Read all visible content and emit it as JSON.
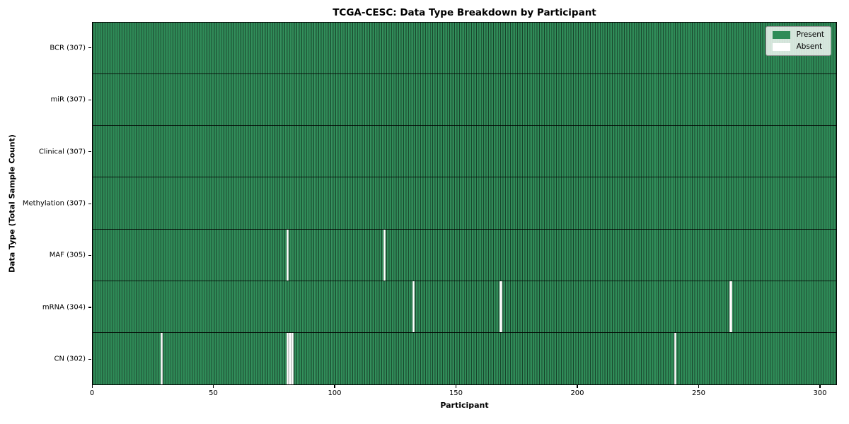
{
  "chart_data": {
    "type": "heatmap",
    "title": "TCGA-CESC: Data Type Breakdown by Participant",
    "xlabel": "Participant",
    "ylabel": "Data Type (Total Sample Count)",
    "n_participants": 307,
    "xlim": [
      0,
      307
    ],
    "x_ticks": [
      0,
      50,
      100,
      150,
      200,
      250,
      300
    ],
    "grid": false,
    "legend_position": "upper right",
    "colors": {
      "present": "#2e8b57",
      "absent": "#ffffff",
      "row_separator": "#000000",
      "plot_border": "#000000"
    },
    "legend": [
      {
        "label": "Present",
        "color": "#2e8b57"
      },
      {
        "label": "Absent",
        "color": "#ffffff"
      }
    ],
    "rows": [
      {
        "label": "BCR (307)",
        "present_count": 307,
        "absent_participants": []
      },
      {
        "label": "miR (307)",
        "present_count": 307,
        "absent_participants": []
      },
      {
        "label": "Clinical (307)",
        "present_count": 307,
        "absent_participants": []
      },
      {
        "label": "Methylation (307)",
        "present_count": 307,
        "absent_participants": []
      },
      {
        "label": "MAF (305)",
        "present_count": 305,
        "absent_participants": [
          80,
          120
        ]
      },
      {
        "label": "mRNA (304)",
        "present_count": 304,
        "absent_participants": [
          132,
          168,
          263
        ]
      },
      {
        "label": "CN (302)",
        "present_count": 302,
        "absent_participants": [
          28,
          80,
          81,
          82,
          240
        ]
      }
    ]
  }
}
